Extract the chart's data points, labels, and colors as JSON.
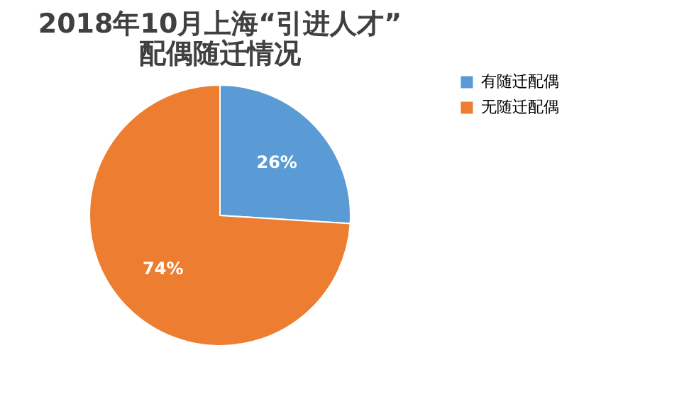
{
  "chart_data": {
    "type": "pie",
    "title": [
      "2018年10月上海“引进人才”",
      "配偶随迁情况"
    ],
    "categories": [
      "有随迁配偶",
      "无随迁配偶"
    ],
    "values": [
      26,
      74
    ],
    "value_labels": [
      "26%",
      "74%"
    ],
    "colors": [
      "#5b9bd5",
      "#ed7d31"
    ],
    "legend": "right"
  }
}
